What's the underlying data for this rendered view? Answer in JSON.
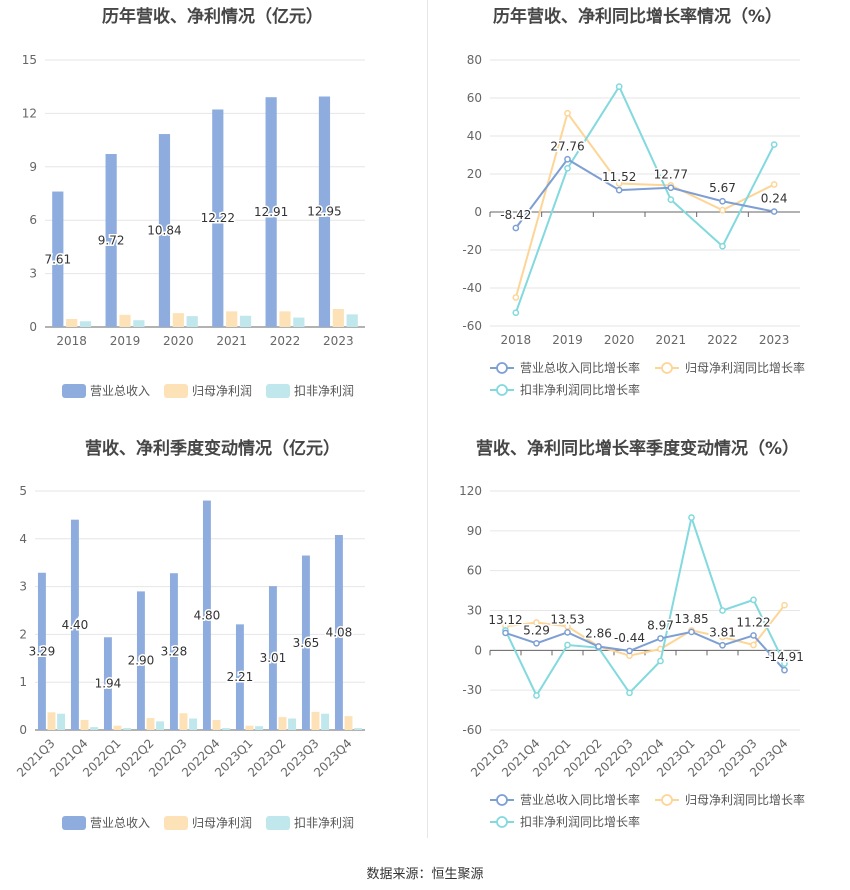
{
  "source": "数据来源：恒生聚源",
  "colors": {
    "revenue": "#8eadde",
    "net_profit": "#fde2b8",
    "deducted_profit": "#bfe7ec"
  },
  "chart_data": [
    {
      "id": "p1",
      "type": "bar",
      "title": "历年营收、净利情况（亿元）",
      "categories": [
        "2018",
        "2019",
        "2020",
        "2021",
        "2022",
        "2023"
      ],
      "ylim": [
        0,
        15
      ],
      "yticks": [
        0,
        3,
        6,
        9,
        12,
        15
      ],
      "series": [
        {
          "name": "营业总收入",
          "color": "#8eadde",
          "values": [
            7.61,
            9.72,
            10.84,
            12.22,
            12.91,
            12.95
          ],
          "labels": [
            "7.61",
            "9.72",
            "10.84",
            "12.22",
            "12.91",
            "12.95"
          ]
        },
        {
          "name": "归母净利润",
          "color": "#fde2b8",
          "values": [
            0.45,
            0.68,
            0.78,
            0.88,
            0.88,
            1.01
          ]
        },
        {
          "name": "扣非净利润",
          "color": "#bfe7ec",
          "values": [
            0.32,
            0.38,
            0.61,
            0.63,
            0.53,
            0.71
          ]
        }
      ]
    },
    {
      "id": "p2",
      "type": "line",
      "title": "历年营收、净利同比增长率情况（%）",
      "categories": [
        "2018",
        "2019",
        "2020",
        "2021",
        "2022",
        "2023"
      ],
      "ylim": [
        -60,
        80
      ],
      "yticks": [
        -60,
        -40,
        -20,
        0,
        20,
        40,
        60,
        80
      ],
      "series": [
        {
          "name": "营业总收入同比增长率",
          "color": "#7e9fd4",
          "values": [
            -8.42,
            27.76,
            11.52,
            12.77,
            5.67,
            0.24
          ],
          "labels": [
            "-8.42",
            "27.76",
            "11.52",
            "12.77",
            "5.67",
            "0.24"
          ]
        },
        {
          "name": "归母净利润同比增长率",
          "color": "#fdd596",
          "values": [
            -45,
            52,
            15,
            14,
            1,
            14.5
          ]
        },
        {
          "name": "扣非净利润同比增长率",
          "color": "#82d9de",
          "values": [
            -53,
            23,
            66,
            6.5,
            -18,
            35.5
          ]
        }
      ]
    },
    {
      "id": "p3",
      "type": "bar",
      "title": "营收、净利季度变动情况（亿元）",
      "categories": [
        "2021Q3",
        "2021Q4",
        "2022Q1",
        "2022Q2",
        "2022Q3",
        "2022Q4",
        "2023Q1",
        "2023Q2",
        "2023Q3",
        "2023Q4"
      ],
      "ylim": [
        0,
        5
      ],
      "yticks": [
        0,
        1,
        2,
        3,
        4,
        5
      ],
      "series": [
        {
          "name": "营业总收入",
          "color": "#8eadde",
          "values": [
            3.29,
            4.4,
            1.94,
            2.9,
            3.28,
            4.8,
            2.21,
            3.01,
            3.65,
            4.08
          ],
          "labels": [
            "3.29",
            "4.40",
            "1.94",
            "2.90",
            "3.28",
            "4.80",
            "2.21",
            "3.01",
            "3.65",
            "4.08"
          ]
        },
        {
          "name": "归母净利润",
          "color": "#fde2b8",
          "values": [
            0.37,
            0.21,
            0.09,
            0.25,
            0.35,
            0.21,
            0.09,
            0.27,
            0.38,
            0.29
          ]
        },
        {
          "name": "扣非净利润",
          "color": "#bfe7ec",
          "values": [
            0.34,
            0.06,
            0.04,
            0.18,
            0.24,
            0.04,
            0.08,
            0.24,
            0.34,
            0.04
          ]
        }
      ]
    },
    {
      "id": "p4",
      "type": "line",
      "title": "营收、净利同比增长率季度变动情况（%）",
      "categories": [
        "2021Q3",
        "2021Q4",
        "2022Q1",
        "2022Q2",
        "2022Q3",
        "2022Q4",
        "2023Q1",
        "2023Q2",
        "2023Q3",
        "2023Q4"
      ],
      "ylim": [
        -60,
        120
      ],
      "yticks": [
        -60,
        -30,
        0,
        30,
        60,
        90,
        120
      ],
      "series": [
        {
          "name": "营业总收入同比增长率",
          "color": "#7e9fd4",
          "values": [
            13.12,
            5.29,
            13.53,
            2.86,
            -0.44,
            8.97,
            13.85,
            3.81,
            11.22,
            -14.91
          ],
          "labels": [
            "13.12",
            "5.29",
            "13.53",
            "2.86",
            "-0.44",
            "8.97",
            "13.85",
            "3.81",
            "11.22",
            "-14.91"
          ]
        },
        {
          "name": "归母净利润同比增长率",
          "color": "#fdd596",
          "values": [
            18,
            21,
            18,
            3,
            -4,
            1,
            15,
            10,
            4,
            34
          ]
        },
        {
          "name": "扣非净利润同比增长率",
          "color": "#82d9de",
          "values": [
            15,
            -34,
            4,
            2,
            -32,
            -8,
            100,
            30,
            38,
            -10
          ]
        }
      ]
    }
  ]
}
